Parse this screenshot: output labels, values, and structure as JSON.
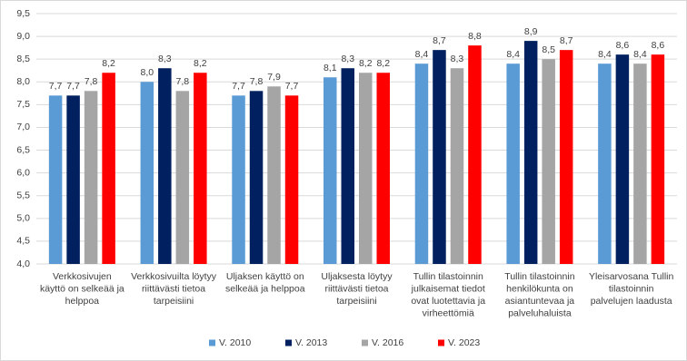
{
  "chart_data": {
    "type": "bar",
    "categories": [
      [
        "Verkkosivujen",
        "käyttö on selkeää ja",
        "helppoa"
      ],
      [
        "Verkkosivuilta löytyy",
        "riittävästi tietoa",
        "tarpeisiini"
      ],
      [
        "Uljaksen käyttö on",
        "selkeää ja helppoa"
      ],
      [
        "Uljaksesta löytyy",
        "riittävästi tietoa",
        "tarpeisiini"
      ],
      [
        "Tullin tilastoinnin",
        "julkaisemat tiedot",
        "ovat luotettavia ja",
        "virheettömiä"
      ],
      [
        "Tullin tilastoinnin",
        "henkilökunta on",
        "asiantuntevaa ja",
        "palveluhaluista"
      ],
      [
        "Yleisarvosana Tullin",
        "tilastoinnin",
        "palvelujen laadusta"
      ]
    ],
    "series": [
      {
        "name": "V. 2010",
        "color": "#5b9bd5",
        "values": [
          7.7,
          8.0,
          7.7,
          8.1,
          8.4,
          8.4,
          8.4
        ],
        "value_labels": [
          "7,7",
          "8,0",
          "7,7",
          "8,1",
          "8,4",
          "8,4",
          "8,4"
        ]
      },
      {
        "name": "V. 2013",
        "color": "#002060",
        "values": [
          7.7,
          8.3,
          7.8,
          8.3,
          8.7,
          8.9,
          8.6
        ],
        "value_labels": [
          "7,7",
          "8,3",
          "7,8",
          "8,3",
          "8,7",
          "8,9",
          "8,6"
        ]
      },
      {
        "name": "V. 2016",
        "color": "#a5a5a5",
        "values": [
          7.8,
          7.8,
          7.9,
          8.2,
          8.3,
          8.5,
          8.4
        ],
        "value_labels": [
          "7,8",
          "7,8",
          "7,9",
          "8,2",
          "8,3",
          "8,5",
          "8,4"
        ]
      },
      {
        "name": "V. 2023",
        "color": "#ff0000",
        "values": [
          8.2,
          8.2,
          7.7,
          8.2,
          8.8,
          8.7,
          8.6
        ],
        "value_labels": [
          "8,2",
          "8,2",
          "7,7",
          "8,2",
          "8,8",
          "8,7",
          "8,6"
        ]
      }
    ],
    "ylim": [
      4,
      9.5
    ],
    "yticks": [
      {
        "value": 4,
        "label": "4,0"
      },
      {
        "value": 4.5,
        "label": "4,5"
      },
      {
        "value": 5,
        "label": "5,0"
      },
      {
        "value": 5.5,
        "label": "5,5"
      },
      {
        "value": 6,
        "label": "6,0"
      },
      {
        "value": 6.5,
        "label": "6,5"
      },
      {
        "value": 7,
        "label": "7,0"
      },
      {
        "value": 7.5,
        "label": "7,5"
      },
      {
        "value": 8,
        "label": "8,0"
      },
      {
        "value": 8.5,
        "label": "8,5"
      },
      {
        "value": 9,
        "label": "9,0"
      },
      {
        "value": 9.5,
        "label": "9,5"
      }
    ],
    "grid": true,
    "legend": "bottom"
  }
}
